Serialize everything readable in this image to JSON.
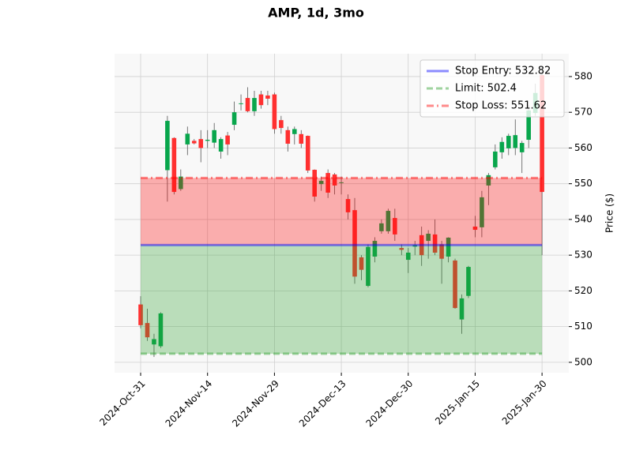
{
  "chart_data": {
    "type": "candlestick",
    "title": "AMP, 1d, 3mo",
    "y_label": "Price ($)",
    "categories": [
      "2024-Oct-31",
      null,
      null,
      null,
      null,
      null,
      null,
      null,
      null,
      null,
      "2024-Nov-14",
      null,
      null,
      null,
      null,
      null,
      null,
      null,
      null,
      null,
      "2024-Nov-29",
      null,
      null,
      null,
      null,
      null,
      null,
      null,
      null,
      null,
      "2024-Dec-13",
      null,
      null,
      null,
      null,
      null,
      null,
      null,
      null,
      null,
      "2024-Dec-30",
      null,
      null,
      null,
      null,
      null,
      null,
      null,
      null,
      null,
      "2025-Jan-15",
      null,
      null,
      null,
      null,
      null,
      null,
      null,
      null,
      null,
      "2025-Jan-30"
    ],
    "open": [
      516.2,
      511,
      505,
      504.5,
      553.8,
      562.8,
      548.5,
      561,
      562,
      562.5,
      562,
      561.5,
      559,
      563.5,
      566.5,
      572.3,
      574,
      570.3,
      575,
      574.7,
      575,
      567.8,
      565,
      563.9,
      563.9,
      563.4,
      553.9,
      549.9,
      553,
      552.6,
      550.2,
      545.7,
      542.6,
      529.4,
      521.4,
      529.6,
      536.7,
      536.7,
      540.4,
      532,
      528.7,
      532.4,
      535.6,
      534,
      535.8,
      533,
      529.6,
      528.5,
      512,
      518.6,
      538,
      537.8,
      549.5,
      554.6,
      558.8,
      559.9,
      560,
      558.8,
      562.3,
      569.8,
      580.4
    ],
    "high": [
      518.5,
      515,
      508,
      514,
      569,
      563,
      554,
      566,
      562.5,
      565,
      565,
      567,
      563,
      564.5,
      573,
      575,
      577,
      576,
      576,
      576,
      575.5,
      569,
      566,
      566,
      565,
      563.5,
      554,
      552,
      554,
      553,
      552,
      547,
      546,
      530,
      533,
      535,
      540,
      543,
      543,
      533,
      532,
      534,
      538,
      537,
      540,
      534,
      535,
      529,
      519,
      527,
      541,
      548,
      553,
      561,
      563,
      564,
      568,
      562,
      572,
      578,
      581
    ],
    "low": [
      509.5,
      506,
      501.5,
      504,
      545,
      547,
      548,
      558,
      561,
      556,
      560,
      560,
      557,
      558,
      565,
      570.5,
      570,
      569,
      571,
      572,
      564,
      564,
      559,
      561,
      560,
      553,
      545,
      548,
      546,
      547,
      547,
      540,
      522,
      523,
      521,
      528,
      536,
      536,
      534,
      530,
      525,
      530,
      527,
      529,
      530,
      522,
      528,
      515,
      508,
      518,
      535,
      535,
      544,
      554,
      557,
      558,
      558,
      553,
      560,
      569,
      530
    ],
    "close": [
      510.4,
      507,
      506.5,
      513.7,
      567.6,
      547.7,
      552,
      564,
      561.3,
      560,
      562.3,
      565,
      562.5,
      561,
      570,
      572.5,
      570.3,
      574,
      572,
      573.8,
      565.3,
      565.6,
      561.2,
      565.3,
      561.2,
      553.7,
      546.4,
      550.8,
      547.5,
      549.5,
      550.4,
      542,
      524,
      525.9,
      532.3,
      534,
      538.9,
      542.4,
      535.8,
      531.5,
      530.7,
      532.8,
      530,
      536,
      530.7,
      529,
      534.9,
      515.2,
      517.9,
      526.7,
      537.1,
      546.2,
      552.4,
      559,
      561.7,
      563.4,
      563.6,
      561.4,
      570.5,
      575.4,
      547.7
    ],
    "up_color": "#08a64c",
    "down_color": "#ff3030",
    "levels": [
      {
        "label": "Stop Entry: 532.82",
        "value": 532.82,
        "color": "#0000ff",
        "style": "solid"
      },
      {
        "label": "Limit: 502.4",
        "value": 502.4,
        "color": "#2ca02c",
        "style": "dashed"
      },
      {
        "label": "Stop Loss: 551.62",
        "value": 551.62,
        "color": "#ff0000",
        "style": "dashdot"
      }
    ],
    "ylim": [
      497.1,
      586.4
    ],
    "yticks": [
      500,
      510,
      520,
      530,
      540,
      550,
      560,
      570,
      580
    ],
    "grid": true,
    "legend": "upper right"
  }
}
